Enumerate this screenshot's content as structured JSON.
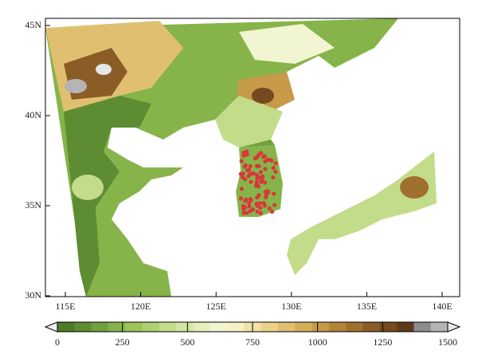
{
  "map": {
    "lat_ticks": [
      {
        "value": 45,
        "label": "45N"
      },
      {
        "value": 40,
        "label": "40N"
      },
      {
        "value": 35,
        "label": "35N"
      },
      {
        "value": 30,
        "label": "30N"
      }
    ],
    "lon_ticks": [
      {
        "value": 115,
        "label": "115E"
      },
      {
        "value": 120,
        "label": "120E"
      },
      {
        "value": 125,
        "label": "125E"
      },
      {
        "value": 130,
        "label": "130E"
      },
      {
        "value": 135,
        "label": "135E"
      },
      {
        "value": 140,
        "label": "140E"
      }
    ]
  },
  "colorbar": {
    "ticks": [
      0,
      250,
      500,
      750,
      1000,
      1250,
      1500
    ],
    "colors": [
      "#f2f2f2",
      "#4e7a2a",
      "#5e8c33",
      "#72a03e",
      "#86b44a",
      "#9ac45a",
      "#aed070",
      "#c2dc8a",
      "#d4e6a4",
      "#e4efbe",
      "#f2f5d2",
      "#f6f0c4",
      "#f1e2a6",
      "#ead28a",
      "#e0c070",
      "#d4ad5a",
      "#c69a48",
      "#b4843a",
      "#a0702e",
      "#8a5c26",
      "#744a1e",
      "#5e3a18",
      "#8c8c8c",
      "#b4b4b4",
      "#e6e6e6"
    ]
  }
}
